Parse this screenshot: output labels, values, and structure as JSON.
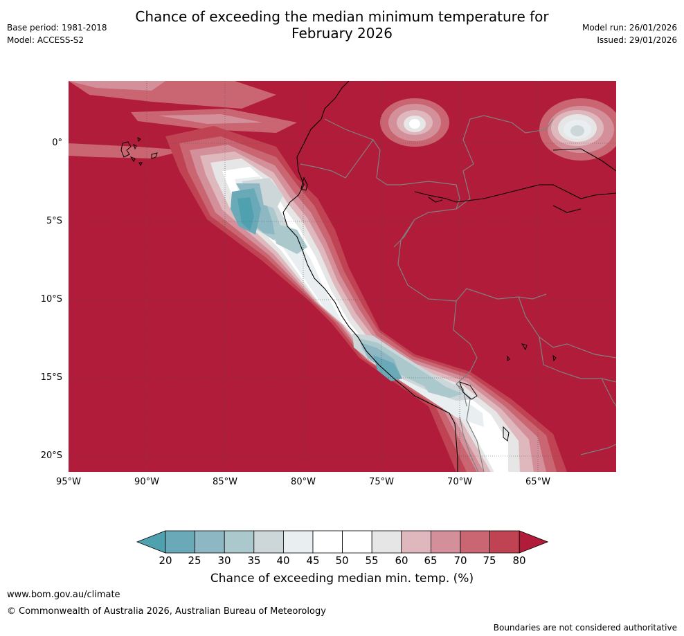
{
  "title_line1": "Chance of exceeding the median minimum temperature for",
  "title_line2": "February 2026",
  "base_period": "Base period: 1981-2018",
  "model": "Model: ACCESS-S2",
  "model_run": "Model run: 26/01/2026",
  "issued": "Issued: 29/01/2026",
  "lat_labels": [
    "0°",
    "5°S",
    "10°S",
    "15°S",
    "20°S"
  ],
  "lon_labels": [
    "95°W",
    "90°W",
    "85°W",
    "80°W",
    "75°W",
    "70°W",
    "65°W"
  ],
  "colorbar": {
    "ticks": [
      "20",
      "25",
      "30",
      "35",
      "40",
      "45",
      "50",
      "55",
      "60",
      "65",
      "70",
      "75",
      "80"
    ],
    "colors": [
      "#4fa1b0",
      "#6aa9b8",
      "#8db8c3",
      "#abc8cc",
      "#cdd7d9",
      "#e9eef0",
      "#ffffff",
      "#ffffff",
      "#e6e6e6",
      "#dfb8bd",
      "#d4909a",
      "#c96672",
      "#bf4352",
      "#b01c39"
    ],
    "label": "Chance of exceeding median min. temp. (%)"
  },
  "colors": {
    "high": "#b01c39",
    "low": "#4fa1b0"
  },
  "footer_url": "www.bom.gov.au/climate",
  "copyright": "© Commonwealth of Australia 2026, Australian Bureau of Meteorology",
  "disclaimer": "Boundaries are not considered authoritative"
}
